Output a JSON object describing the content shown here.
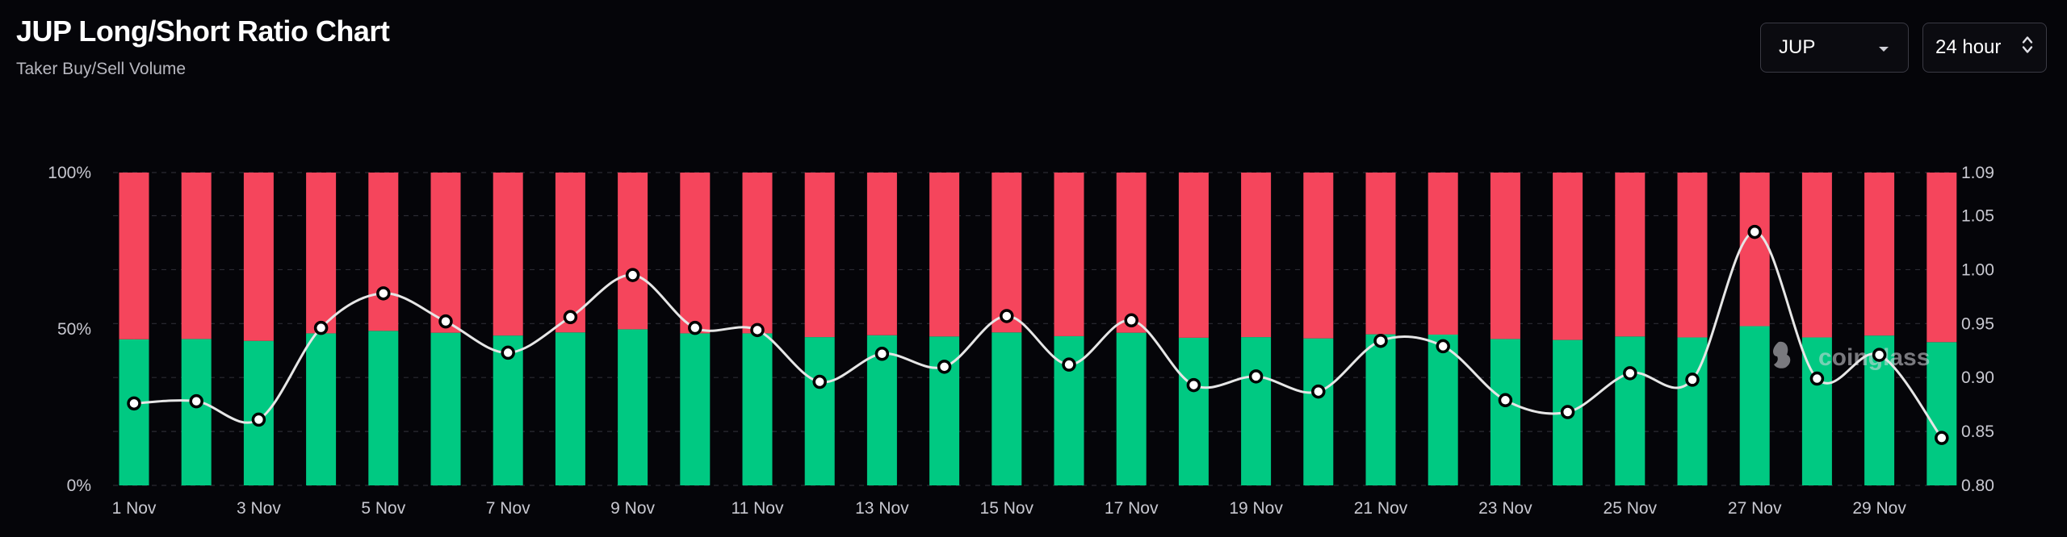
{
  "header": {
    "title": "JUP Long/Short Ratio Chart",
    "subtitle": "Taker Buy/Sell Volume"
  },
  "controls": {
    "symbol_select": {
      "value": "JUP",
      "icon": "caret-down-icon"
    },
    "period_select": {
      "value": "24 hour",
      "icon": "up-down-chevron-icon"
    }
  },
  "watermark": "coinglass",
  "colors": {
    "buy": "#00C982",
    "sell": "#F5455C",
    "ratio_line": "#E6E6E6",
    "background": "#050509",
    "grid": "#2b2b33"
  },
  "chart_data": {
    "type": "bar",
    "stacked": true,
    "categories": [
      "1 Nov",
      "2 Nov",
      "3 Nov",
      "4 Nov",
      "5 Nov",
      "6 Nov",
      "7 Nov",
      "8 Nov",
      "9 Nov",
      "10 Nov",
      "11 Nov",
      "12 Nov",
      "13 Nov",
      "14 Nov",
      "15 Nov",
      "16 Nov",
      "17 Nov",
      "18 Nov",
      "19 Nov",
      "20 Nov",
      "21 Nov",
      "22 Nov",
      "23 Nov",
      "24 Nov",
      "25 Nov",
      "26 Nov",
      "27 Nov",
      "28 Nov",
      "29 Nov",
      "30 Nov"
    ],
    "x_tick_labels": [
      "1 Nov",
      "3 Nov",
      "5 Nov",
      "7 Nov",
      "9 Nov",
      "11 Nov",
      "13 Nov",
      "15 Nov",
      "17 Nov",
      "19 Nov",
      "21 Nov",
      "23 Nov",
      "25 Nov",
      "27 Nov",
      "29 Nov"
    ],
    "series": [
      {
        "color": "#00C982",
        "values": [
          46.7,
          46.8,
          46.2,
          48.6,
          49.4,
          48.8,
          47.9,
          48.9,
          49.9,
          48.6,
          48.6,
          47.4,
          48.0,
          47.6,
          48.9,
          47.7,
          48.8,
          47.2,
          47.4,
          47.0,
          48.3,
          48.2,
          46.8,
          46.5,
          47.6,
          47.3,
          50.9,
          47.3,
          47.9,
          45.8
        ],
        "axis": "left"
      },
      {
        "color": "#F5455C",
        "values": [
          53.3,
          53.2,
          53.8,
          51.4,
          50.6,
          51.2,
          52.1,
          51.1,
          50.1,
          51.4,
          51.4,
          52.6,
          52.0,
          52.4,
          51.1,
          52.3,
          51.2,
          52.8,
          52.6,
          53.0,
          51.7,
          51.8,
          53.2,
          53.5,
          52.4,
          52.7,
          49.1,
          52.7,
          52.1,
          54.2
        ],
        "axis": "left"
      },
      {
        "type": "line",
        "color": "#E6E6E6",
        "axis": "right",
        "values": [
          0.876,
          0.878,
          0.861,
          0.946,
          0.978,
          0.952,
          0.923,
          0.956,
          0.995,
          0.946,
          0.944,
          0.896,
          0.922,
          0.91,
          0.957,
          0.912,
          0.953,
          0.893,
          0.901,
          0.887,
          0.934,
          0.929,
          0.879,
          0.868,
          0.904,
          0.898,
          1.035,
          0.899,
          0.921,
          0.844
        ]
      }
    ],
    "left_axis": {
      "ticks": [
        "0%",
        "50%",
        "100%"
      ],
      "range": [
        0,
        100
      ]
    },
    "right_axis": {
      "ticks": [
        "0.80",
        "0.85",
        "0.90",
        "0.95",
        "1.00",
        "1.05",
        "1.09"
      ],
      "range": [
        0.8,
        1.09
      ]
    },
    "grid": true
  }
}
